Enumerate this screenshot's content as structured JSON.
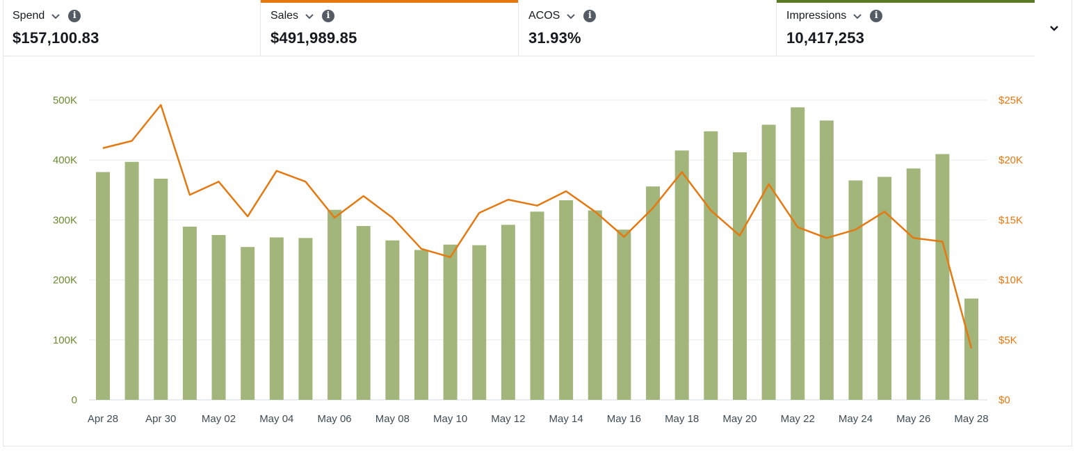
{
  "metrics": [
    {
      "label": "Spend",
      "value": "$157,100.83",
      "accent": ""
    },
    {
      "label": "Sales",
      "value": "$491,989.85",
      "accent": "#e47911"
    },
    {
      "label": "ACOS",
      "value": "31.93%",
      "accent": ""
    },
    {
      "label": "Impressions",
      "value": "10,417,253",
      "accent": "#5a7a23"
    }
  ],
  "icons": {
    "dropdown": "chevron-down-icon",
    "info": "info-icon",
    "expand": "chevron-down-icon"
  },
  "chart_data": {
    "type": "bar",
    "categories": [
      "Apr 28",
      "Apr 29",
      "Apr 30",
      "May 01",
      "May 02",
      "May 03",
      "May 04",
      "May 05",
      "May 06",
      "May 07",
      "May 08",
      "May 09",
      "May 10",
      "May 11",
      "May 12",
      "May 13",
      "May 14",
      "May 15",
      "May 16",
      "May 17",
      "May 18",
      "May 19",
      "May 20",
      "May 21",
      "May 22",
      "May 23",
      "May 24",
      "May 25",
      "May 26",
      "May 27",
      "May 28"
    ],
    "x_tick_labels": [
      "Apr 28",
      "Apr 30",
      "May 02",
      "May 04",
      "May 06",
      "May 08",
      "May 10",
      "May 12",
      "May 14",
      "May 16",
      "May 18",
      "May 20",
      "May 22",
      "May 24",
      "May 26",
      "May 28"
    ],
    "series": [
      {
        "name": "Impressions",
        "type": "bar",
        "axis": "left",
        "color": "#a2b67c",
        "values": [
          380000,
          397000,
          369000,
          289000,
          275000,
          255000,
          271000,
          270000,
          317000,
          290000,
          266000,
          250000,
          259000,
          258000,
          292000,
          314000,
          333000,
          316000,
          284000,
          356000,
          416000,
          448000,
          413000,
          459000,
          488000,
          466000,
          366000,
          372000,
          386000,
          410000,
          169000
        ]
      },
      {
        "name": "Sales",
        "type": "line",
        "axis": "right",
        "color": "#e47911",
        "values": [
          21000,
          21600,
          24600,
          17100,
          18200,
          15300,
          19100,
          18200,
          15200,
          17000,
          15200,
          12600,
          11900,
          15600,
          16700,
          16200,
          17400,
          15700,
          13600,
          16000,
          19000,
          15800,
          13700,
          18000,
          14400,
          13500,
          14200,
          15700,
          13500,
          13200,
          4300
        ]
      }
    ],
    "y_left": {
      "ticks": [
        "0",
        "100K",
        "200K",
        "300K",
        "400K",
        "500K"
      ],
      "ylim": [
        0,
        500000
      ]
    },
    "y_right": {
      "ticks": [
        "$0",
        "$5K",
        "$10K",
        "$15K",
        "$20K",
        "$25K"
      ],
      "ylim": [
        0,
        25000
      ]
    },
    "axis_colors": {
      "left": "#6b8a2f",
      "right": "#e47911"
    },
    "grid": true
  }
}
